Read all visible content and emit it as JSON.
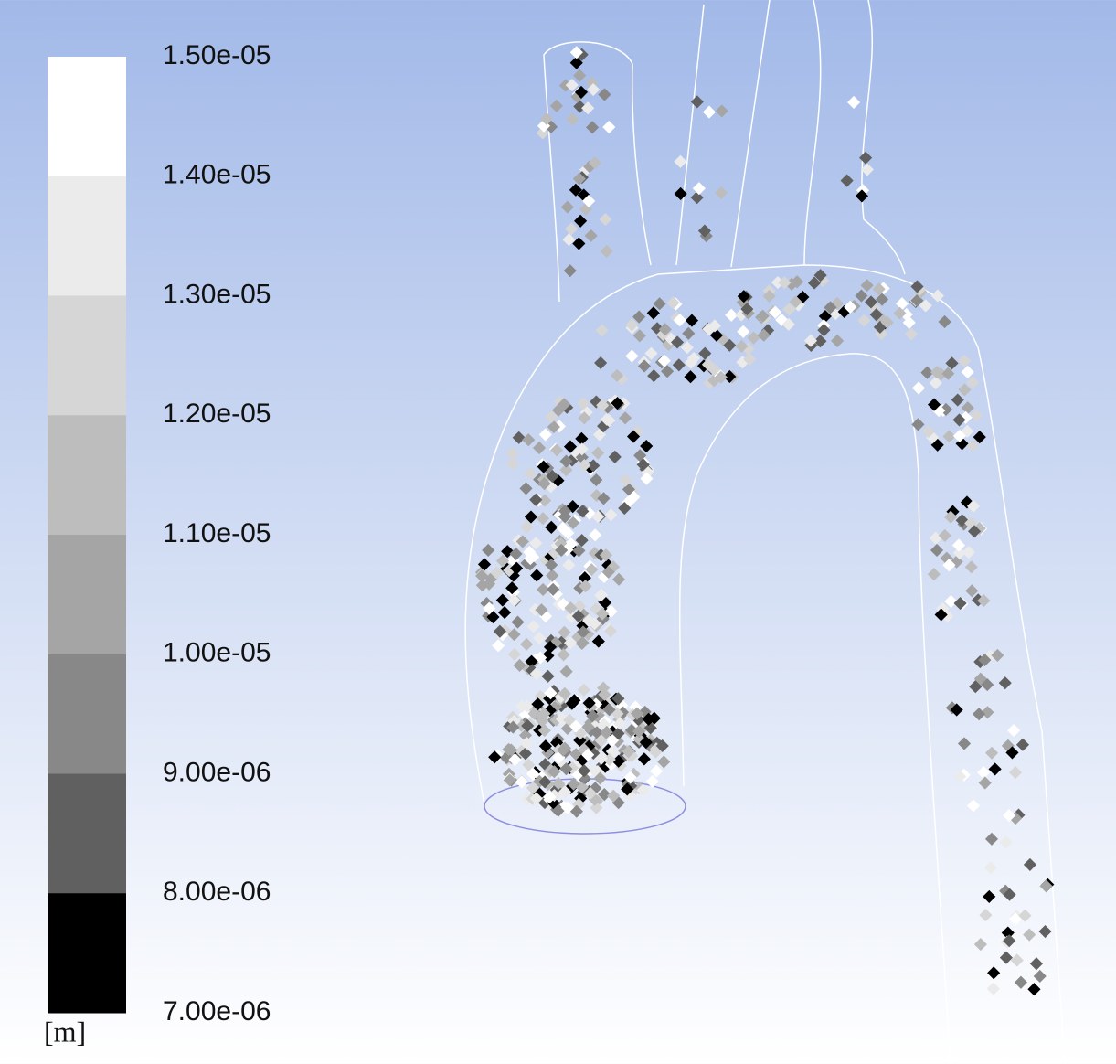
{
  "colorbar": {
    "ticks": [
      {
        "value": 1.5e-05,
        "label": "1.50e-05"
      },
      {
        "value": 1.4e-05,
        "label": "1.40e-05"
      },
      {
        "value": 1.3e-05,
        "label": "1.30e-05"
      },
      {
        "value": 1.2e-05,
        "label": "1.20e-05"
      },
      {
        "value": 1.1e-05,
        "label": "1.10e-05"
      },
      {
        "value": 1e-05,
        "label": "1.00e-05"
      },
      {
        "value": 9e-06,
        "label": "9.00e-06"
      },
      {
        "value": 8e-06,
        "label": "8.00e-06"
      },
      {
        "value": 7e-06,
        "label": "7.00e-06"
      }
    ],
    "colors": [
      "#ffffff",
      "#ebebeb",
      "#d6d6d6",
      "#bdbdbd",
      "#a5a5a5",
      "#888888",
      "#606060",
      "#000000"
    ],
    "unit": "[m]"
  }
}
